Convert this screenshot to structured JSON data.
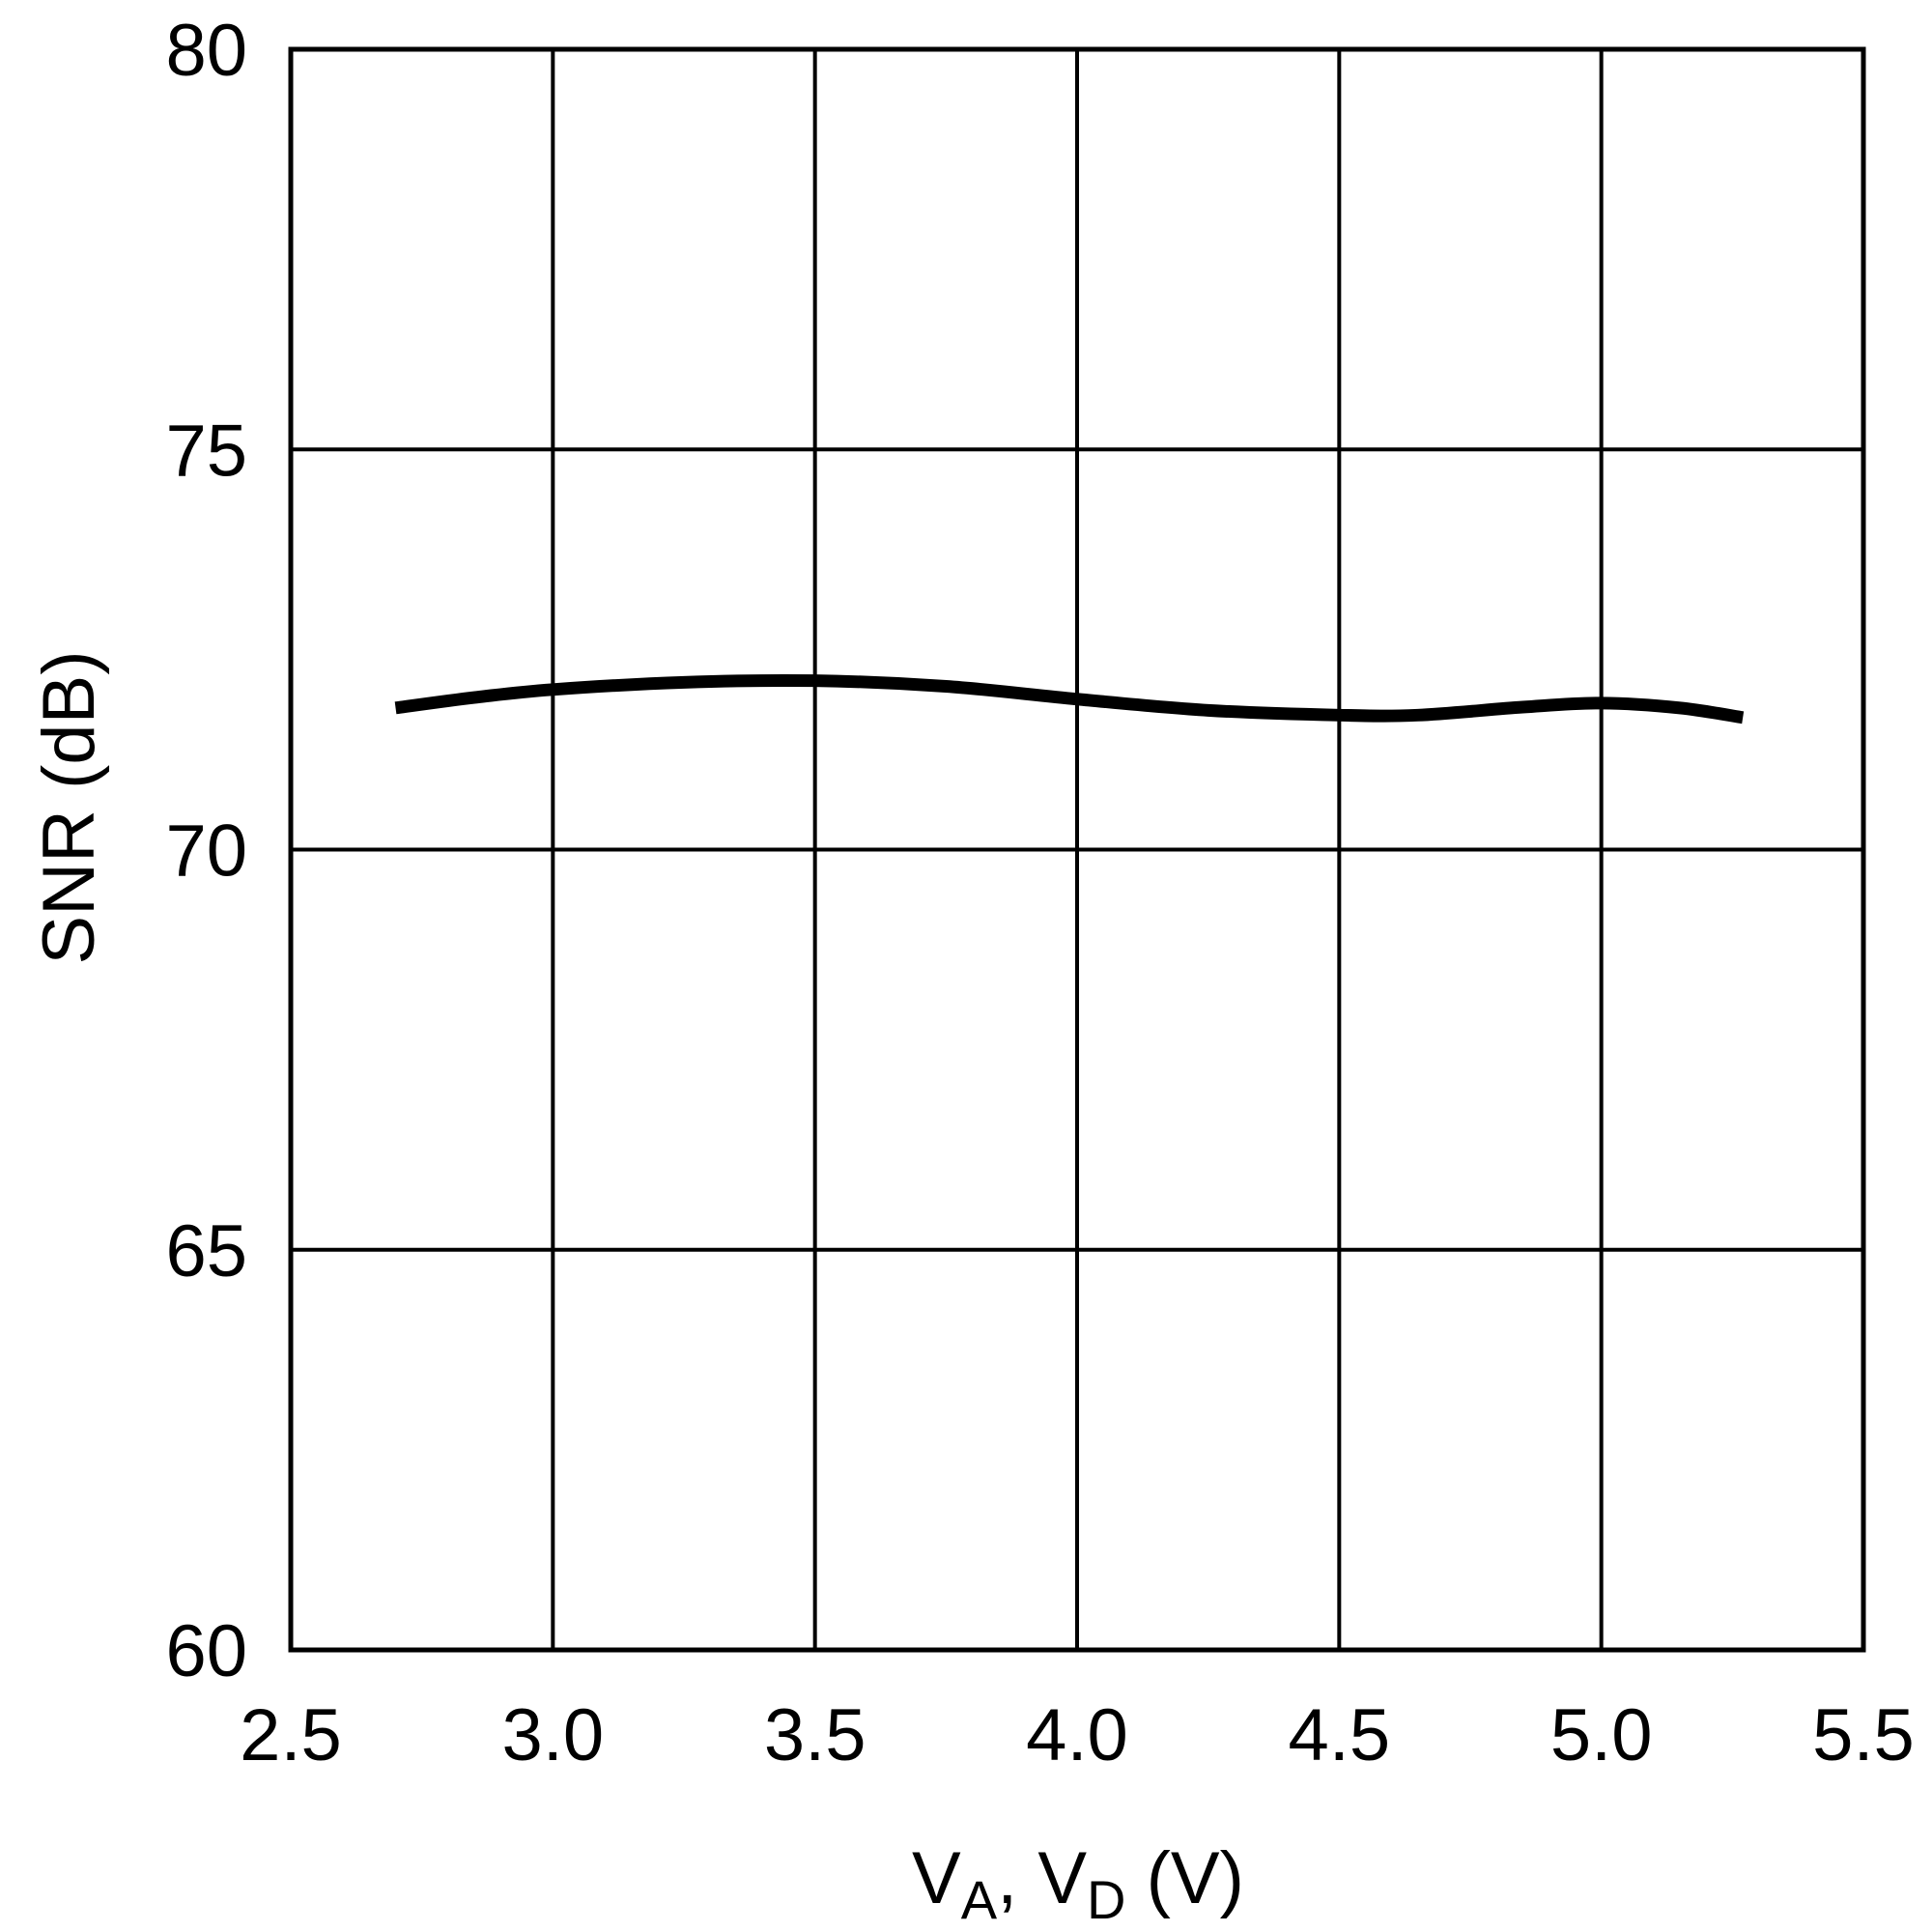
{
  "chart_data": {
    "type": "line",
    "title": "",
    "xlabel": {
      "main1": "V",
      "sub1": "A",
      "sep": ", ",
      "main2": "V",
      "sub2": "D",
      "unit": " (V)"
    },
    "ylabel": "SNR (dB)",
    "xlim": [
      2.5,
      5.5
    ],
    "ylim": [
      60,
      80
    ],
    "xticks": [
      "2.5",
      "3.0",
      "3.5",
      "4.0",
      "4.5",
      "5.0",
      "5.5"
    ],
    "yticks": [
      "60",
      "65",
      "70",
      "75",
      "80"
    ],
    "grid": true,
    "line_color": "#000000",
    "series": [
      {
        "x": [
          2.7,
          2.85,
          3.0,
          3.25,
          3.5,
          3.75,
          4.0,
          4.25,
          4.5,
          4.65,
          4.85,
          5.0,
          5.15,
          5.27
        ],
        "y": [
          71.77,
          71.9,
          72.0,
          72.09,
          72.11,
          72.04,
          71.88,
          71.74,
          71.68,
          71.68,
          71.78,
          71.83,
          71.77,
          71.65
        ]
      }
    ]
  }
}
